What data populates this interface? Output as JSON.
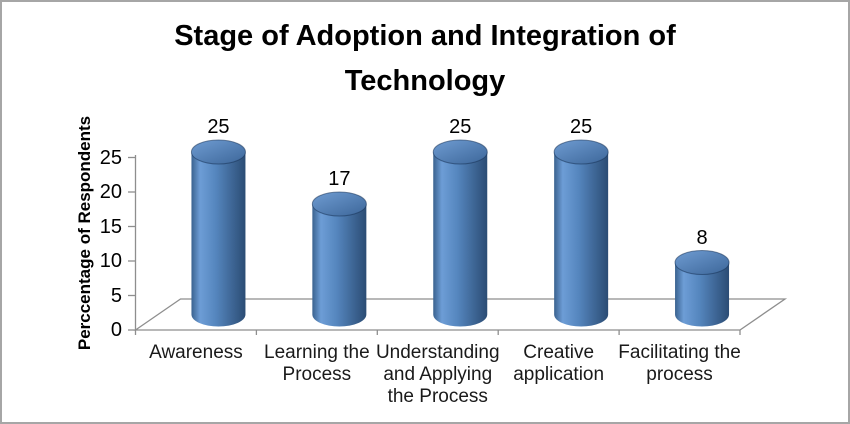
{
  "chart_data": {
    "type": "bar",
    "subtype": "3d-cylinder",
    "title": "Stage of Adoption and Integration of\nTechnology",
    "ylabel": "Perccentage of Respondents",
    "xlabel": "",
    "categories": [
      "Awareness",
      "Learning the\nProcess",
      "Understanding\nand Applying\nthe Process",
      "Creative\napplication",
      "Facilitating the\nprocess"
    ],
    "values": [
      25,
      17,
      25,
      25,
      8
    ],
    "yticks": [
      0,
      5,
      10,
      15,
      20,
      25
    ],
    "ylim": [
      0,
      25
    ],
    "grid": false,
    "legend": false,
    "data_labels_shown": true,
    "style": {
      "bar_base_color": "#4f81bd",
      "body_gradient_stops": [
        "#3a628f",
        "#6d9dd6",
        "#5586be",
        "#2b4c74"
      ],
      "body_gradient_offsets": [
        0,
        0.16,
        0.45,
        1
      ],
      "top_gradient_stops": [
        "#6f9cd2",
        "#3f699c"
      ],
      "top_rim_color": "rgba(23,51,88,0.55)",
      "axis_color": "#8e8e8e",
      "text_color": "#000000",
      "border_color": "#a6a6a6",
      "background": "#ffffff"
    }
  }
}
